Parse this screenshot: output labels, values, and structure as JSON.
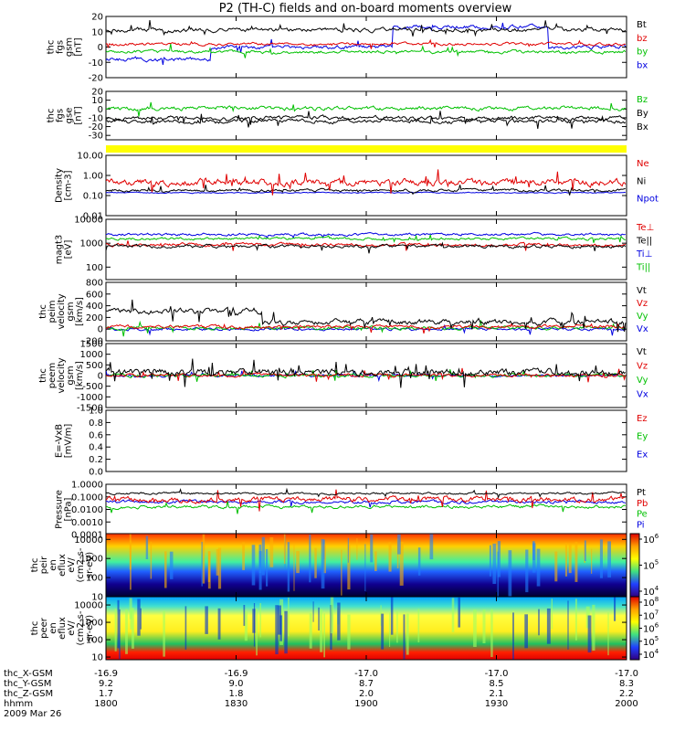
{
  "title": "P2 (TH-C) fields and on-board moments overview",
  "chart_data": {
    "type": "line",
    "x_ticks": [
      "1800",
      "1830",
      "1900",
      "1930",
      "2000"
    ],
    "footer": {
      "rows": [
        {
          "label": "thc_X-GSM",
          "values": [
            "-16.9",
            "-16.9",
            "-17.0",
            "-17.0",
            "-17.0"
          ]
        },
        {
          "label": "thc_Y-GSM",
          "values": [
            "9.2",
            "9.0",
            "8.7",
            "8.5",
            "8.3"
          ]
        },
        {
          "label": "thc_Z-GSM",
          "values": [
            "1.7",
            "1.8",
            "2.0",
            "2.1",
            "2.2"
          ]
        },
        {
          "label": "hhmm",
          "values": [
            "1800",
            "1830",
            "1900",
            "1930",
            "2000"
          ]
        }
      ],
      "date": "2009 Mar 26"
    },
    "panels": [
      {
        "id": "fgs-gsm",
        "ylabel": [
          "thc",
          "fgs",
          "gsm",
          "[nT]"
        ],
        "ylim": [
          -20,
          20
        ],
        "ticks": [
          {
            "v": 20,
            "t": "20"
          },
          {
            "v": 10,
            "t": "10"
          },
          {
            "v": 0,
            "t": "0"
          },
          {
            "v": -10,
            "t": "-10"
          },
          {
            "v": -20,
            "t": "-20"
          }
        ],
        "legend": [
          {
            "t": "Bt",
            "c": "#000000"
          },
          {
            "t": "bz",
            "c": "#e00000"
          },
          {
            "t": "by",
            "c": "#00c000"
          },
          {
            "t": "bx",
            "c": "#0000e0"
          }
        ]
      },
      {
        "id": "fgs-gse",
        "ylabel": [
          "thc",
          "fgs",
          "gse",
          "[nT]"
        ],
        "ylim": [
          -35,
          20
        ],
        "ticks": [
          {
            "v": 20,
            "t": "20"
          },
          {
            "v": 10,
            "t": "10"
          },
          {
            "v": 0,
            "t": "0"
          },
          {
            "v": -10,
            "t": "-10"
          },
          {
            "v": -20,
            "t": "-20"
          },
          {
            "v": -30,
            "t": "-30"
          }
        ],
        "legend": [
          {
            "t": "Bz",
            "c": "#00c000"
          },
          {
            "t": "By",
            "c": "#000000"
          },
          {
            "t": "Bx",
            "c": "#000000"
          }
        ]
      },
      {
        "id": "density",
        "ylabel": [
          "Density",
          "[cm-3]"
        ],
        "log": true,
        "ylim": [
          0.01,
          10
        ],
        "ticks": [
          {
            "v": 10,
            "t": "10.00"
          },
          {
            "v": 1,
            "t": "1.00"
          },
          {
            "v": 0.1,
            "t": "0.10"
          },
          {
            "v": 0.01,
            "t": "0.01"
          }
        ],
        "legend": [
          {
            "t": "Ne",
            "c": "#e00000"
          },
          {
            "t": "Ni",
            "c": "#000000"
          },
          {
            "t": "Npot",
            "c": "#0000e0"
          }
        ]
      },
      {
        "id": "temperature",
        "ylabel": [
          "magt3",
          "[eV]"
        ],
        "log": true,
        "ylim": [
          30,
          10000
        ],
        "ticks": [
          {
            "v": 10000,
            "t": "10000"
          },
          {
            "v": 1000,
            "t": "1000"
          },
          {
            "v": 100,
            "t": "100"
          }
        ],
        "legend": [
          {
            "t": "Te⊥",
            "c": "#e00000"
          },
          {
            "t": "Te||",
            "c": "#000000"
          },
          {
            "t": "Ti⊥",
            "c": "#0000e0"
          },
          {
            "t": "Ti||",
            "c": "#00c000"
          }
        ]
      },
      {
        "id": "peim-velocity",
        "ylabel": [
          "thc",
          "peim",
          "velocity",
          "gsm",
          "[km/s]"
        ],
        "ylim": [
          -200,
          800
        ],
        "ticks": [
          {
            "v": 800,
            "t": "800"
          },
          {
            "v": 600,
            "t": "600"
          },
          {
            "v": 400,
            "t": "400"
          },
          {
            "v": 200,
            "t": "200"
          },
          {
            "v": 0,
            "t": "0"
          },
          {
            "v": -200,
            "t": "-200"
          }
        ],
        "legend": [
          {
            "t": "Vt",
            "c": "#000000"
          },
          {
            "t": "Vz",
            "c": "#e00000"
          },
          {
            "t": "Vy",
            "c": "#00c000"
          },
          {
            "t": "Vx",
            "c": "#0000e0"
          }
        ]
      },
      {
        "id": "peem-velocity",
        "ylabel": [
          "thc",
          "peem",
          "velocity",
          "gsm",
          "[km/s]"
        ],
        "ylim": [
          -1500,
          1500
        ],
        "ticks": [
          {
            "v": 1500,
            "t": "1500"
          },
          {
            "v": 1000,
            "t": "1000"
          },
          {
            "v": 500,
            "t": "500"
          },
          {
            "v": 0,
            "t": "0"
          },
          {
            "v": -500,
            "t": "-500"
          },
          {
            "v": -1000,
            "t": "-1000"
          },
          {
            "v": -1500,
            "t": "-1500"
          }
        ],
        "legend": [
          {
            "t": "Vt",
            "c": "#000000"
          },
          {
            "t": "Vz",
            "c": "#e00000"
          },
          {
            "t": "Vy",
            "c": "#00c000"
          },
          {
            "t": "Vx",
            "c": "#0000e0"
          }
        ]
      },
      {
        "id": "efield",
        "ylabel": [
          "E=-VxB",
          "[mV/m]"
        ],
        "ylim": [
          0,
          1
        ],
        "ticks": [
          {
            "v": 1,
            "t": "1.0"
          },
          {
            "v": 0.8,
            "t": "0.8"
          },
          {
            "v": 0.6,
            "t": "0.6"
          },
          {
            "v": 0.4,
            "t": "0.4"
          },
          {
            "v": 0.2,
            "t": "0.2"
          },
          {
            "v": 0,
            "t": "0.0"
          }
        ],
        "legend": [
          {
            "t": "Ez",
            "c": "#e00000"
          },
          {
            "t": "Ey",
            "c": "#00c000"
          },
          {
            "t": "Ex",
            "c": "#0000e0"
          }
        ]
      },
      {
        "id": "pressure",
        "ylabel": [
          "Pressure",
          "[nPa]"
        ],
        "log": true,
        "ylim": [
          0.0001,
          1
        ],
        "ticks": [
          {
            "v": 1,
            "t": "1.0000"
          },
          {
            "v": 0.1,
            "t": "0.1000"
          },
          {
            "v": 0.01,
            "t": "0.0100"
          },
          {
            "v": 0.001,
            "t": "0.0010"
          },
          {
            "v": 0.0001,
            "t": "0.0001"
          }
        ],
        "legend": [
          {
            "t": "Pt",
            "c": "#000000"
          },
          {
            "t": "Pb",
            "c": "#e00000"
          },
          {
            "t": "Pe",
            "c": "#00c000"
          },
          {
            "t": "Pi",
            "c": "#0000e0"
          }
        ]
      },
      {
        "id": "peir-spectrogram",
        "ylabel": [
          "thc",
          "peir",
          "en",
          "eflux",
          "eV/",
          "(cm2-s-",
          "sr-eV)"
        ],
        "log": true,
        "ylim": [
          10,
          20000
        ],
        "ticks": [
          {
            "v": 10000,
            "t": "10000"
          },
          {
            "v": 1000,
            "t": "1000"
          },
          {
            "v": 100,
            "t": "100"
          },
          {
            "v": 10,
            "t": "10"
          }
        ],
        "colorbar": [
          {
            "exp": "6"
          },
          {
            "exp": "5"
          },
          {
            "exp": "4"
          }
        ]
      },
      {
        "id": "peer-spectrogram",
        "ylabel": [
          "thc",
          "peer",
          "en",
          "eflux",
          "eV/",
          "(cm2-s-",
          "sr-eV)"
        ],
        "log": true,
        "ylim": [
          7,
          30000
        ],
        "ticks": [
          {
            "v": 10000,
            "t": "10000"
          },
          {
            "v": 1000,
            "t": "1000"
          },
          {
            "v": 100,
            "t": "100"
          },
          {
            "v": 10,
            "t": "10"
          }
        ],
        "colorbar": [
          {
            "exp": "8"
          },
          {
            "exp": "7"
          },
          {
            "exp": "6"
          },
          {
            "exp": "5"
          },
          {
            "exp": "4"
          }
        ]
      }
    ]
  }
}
